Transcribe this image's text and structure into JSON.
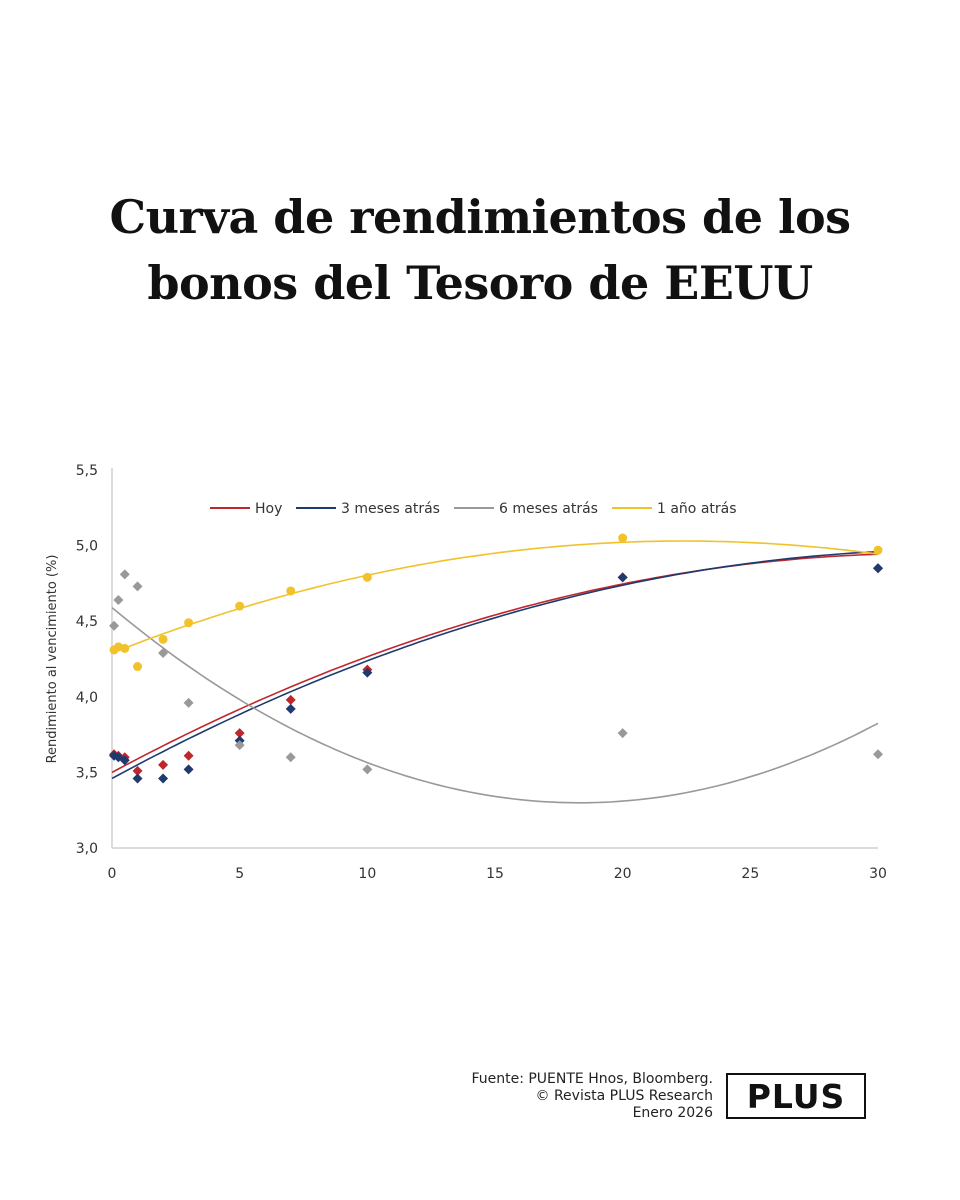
{
  "title": {
    "line1": "Curva de rendimientos de los",
    "line2": "bonos del Tesoro de EEUU"
  },
  "footer": {
    "source": "Fuente: PUENTE Hnos, Bloomberg.",
    "copyright": "© Revista PLUS Research",
    "date": "Enero 2026"
  },
  "logo": {
    "text": "PLUS"
  },
  "chart_data": {
    "type": "scatter",
    "title": "",
    "xlabel": "",
    "ylabel": "Rendimiento al vencimiento (%)",
    "xlim": [
      0,
      30
    ],
    "ylim": [
      3.0,
      5.5
    ],
    "x_ticks": [
      0,
      5,
      10,
      15,
      20,
      25,
      30
    ],
    "x_tick_labels": [
      "0",
      "5",
      "10",
      "15",
      "20",
      "25",
      "30"
    ],
    "y_ticks": [
      3.0,
      3.5,
      4.0,
      4.5,
      5.0,
      5.5
    ],
    "y_tick_labels": [
      "3,0",
      "3,5",
      "4,0",
      "4,5",
      "5,0",
      "5,5"
    ],
    "grid": false,
    "legend_position": "top",
    "series": [
      {
        "name": "Hoy",
        "color": "#c0272d",
        "marker": "diamond",
        "x": [
          0.08,
          0.25,
          0.5,
          1,
          2,
          3,
          5,
          7,
          10,
          20,
          30
        ],
        "y": [
          3.62,
          3.61,
          3.6,
          3.51,
          3.55,
          3.61,
          3.76,
          3.98,
          4.18,
          4.79,
          4.85
        ],
        "trend": [
          3.5,
          0.0907,
          -0.00142
        ]
      },
      {
        "name": "3 meses atrás",
        "color": "#1f3a6e",
        "marker": "diamond",
        "x": [
          0.08,
          0.25,
          0.5,
          1,
          2,
          3,
          5,
          7,
          10,
          20,
          30
        ],
        "y": [
          3.61,
          3.6,
          3.58,
          3.46,
          3.46,
          3.52,
          3.71,
          3.92,
          4.16,
          4.79,
          4.85
        ],
        "trend": [
          3.46,
          0.0917,
          -0.00139
        ]
      },
      {
        "name": "6 meses atrás",
        "color": "#999999",
        "marker": "diamond",
        "x": [
          0.08,
          0.25,
          0.5,
          1,
          2,
          3,
          5,
          7,
          10,
          20,
          30
        ],
        "y": [
          4.47,
          4.64,
          4.81,
          4.73,
          4.29,
          3.96,
          3.68,
          3.6,
          3.52,
          3.76,
          3.62
        ],
        "trend": [
          4.59,
          -0.141,
          0.00385
        ]
      },
      {
        "name": "1 año atrás",
        "color": "#f2c22b",
        "marker": "circle",
        "x": [
          0.08,
          0.25,
          0.5,
          1,
          2,
          3,
          5,
          7,
          10,
          20,
          30
        ],
        "y": [
          4.31,
          4.33,
          4.32,
          4.2,
          4.38,
          4.49,
          4.6,
          4.7,
          4.79,
          5.05,
          4.97
        ],
        "trend": [
          4.29,
          0.0662,
          -0.00148
        ]
      }
    ]
  }
}
